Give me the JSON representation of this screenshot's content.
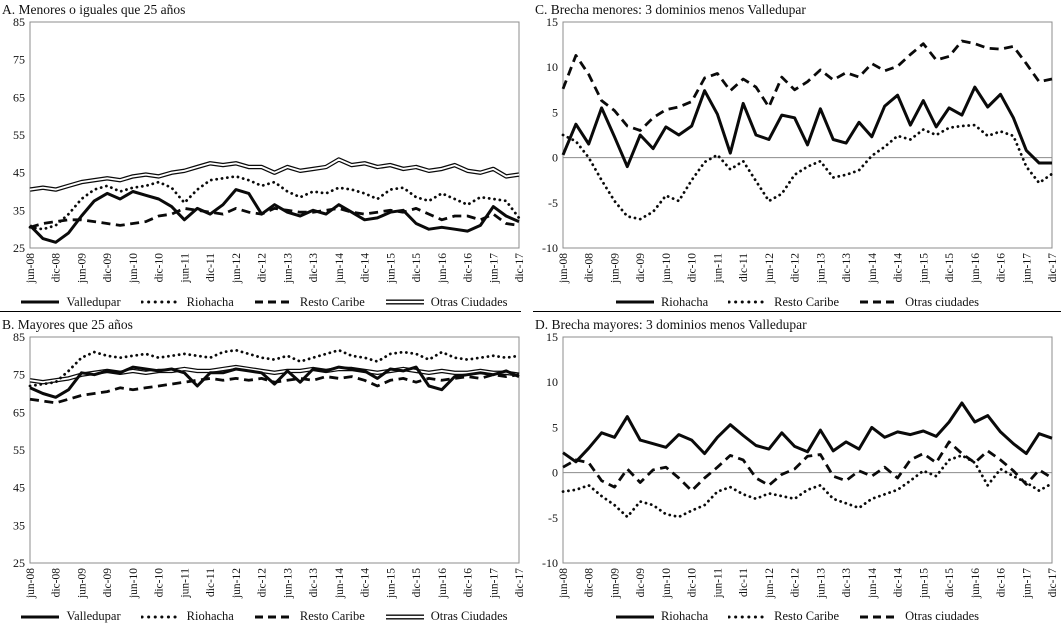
{
  "x_tick_labels": [
    "jun-08",
    "dic-08",
    "jun-09",
    "dic-09",
    "jun-10",
    "dic-10",
    "jun-11",
    "dic-11",
    "jun-12",
    "dic-12",
    "jun-13",
    "dic-13",
    "jun-14",
    "dic-14",
    "jun-15",
    "dic-15",
    "jun-16",
    "dic-16",
    "jun-17",
    "dic-17"
  ],
  "colors": {
    "line": "#0a0a0a",
    "axis": "#8c8c8c",
    "background": "#ffffff"
  },
  "chart_data": [
    {
      "panel_label": "A",
      "title": "A. Menores o iguales que 25 años",
      "type": "line",
      "x_frequency": "quarterly, jun-08 to dic-17",
      "y_ticks": [
        85,
        75,
        65,
        55,
        45,
        35,
        25
      ],
      "ylim": [
        25,
        85
      ],
      "zero_line": false,
      "series": [
        {
          "name": "Valledupar",
          "style": "solid",
          "values": [
            31,
            27.5,
            26.5,
            29,
            33.5,
            37.5,
            39.5,
            38,
            40,
            39,
            38,
            36,
            32.5,
            35.5,
            34,
            36.5,
            40.5,
            39.5,
            34,
            36.5,
            34.5,
            33.5,
            35,
            34,
            36.5,
            34.5,
            32.5,
            33,
            34.5,
            35,
            31.5,
            30,
            30.5,
            30,
            29.5,
            31,
            36,
            33.5,
            32
          ]
        },
        {
          "name": "Riohacha",
          "style": "dotted",
          "values": [
            30.5,
            30,
            31,
            34,
            38,
            40.5,
            41.5,
            40,
            41,
            41.5,
            42.5,
            41,
            37,
            40.5,
            43,
            43.5,
            44,
            43,
            41.5,
            42.5,
            40,
            38.5,
            40,
            39.5,
            41,
            40.5,
            39.5,
            38,
            40.5,
            41,
            38.5,
            37.5,
            39.5,
            38,
            36.5,
            38.5,
            38,
            37.5,
            33
          ]
        },
        {
          "name": "Resto Caribe",
          "style": "dashed",
          "values": [
            30.5,
            31.5,
            32,
            32.5,
            32.5,
            32,
            31.5,
            31,
            31.5,
            32,
            33.5,
            34,
            35.5,
            35,
            34.5,
            34,
            35.5,
            34.5,
            34,
            35.5,
            35,
            34.5,
            34.5,
            35,
            35.5,
            34.5,
            34,
            34.5,
            35,
            34.5,
            35.5,
            34,
            32.5,
            33.5,
            33.5,
            32.5,
            34,
            31.5,
            31
          ]
        },
        {
          "name": "Otras Ciudades",
          "style": "double",
          "values": [
            40.5,
            41,
            40.5,
            41.5,
            42.5,
            43,
            43.5,
            43,
            44,
            44.5,
            44,
            45,
            45.5,
            46.5,
            47.5,
            47,
            47.5,
            46.5,
            46.5,
            45,
            46.5,
            45.5,
            46,
            46.5,
            48.5,
            47,
            47.5,
            46.5,
            47,
            46,
            46.5,
            45.5,
            46,
            47,
            45.5,
            45,
            46,
            44,
            44.5
          ]
        }
      ]
    },
    {
      "panel_label": "C",
      "title": "C. Brecha menores: 3 dominios menos Valledupar",
      "type": "line",
      "x_frequency": "quarterly, jun-08 to dic-17",
      "y_ticks": [
        15,
        10,
        5,
        0,
        -5,
        -10
      ],
      "ylim": [
        -10,
        15
      ],
      "zero_line": true,
      "series": [
        {
          "name": "Riohacha",
          "style": "solid",
          "values": [
            0.3,
            3.7,
            1.5,
            5.5,
            2.3,
            -1,
            2.5,
            1,
            3.4,
            2.5,
            3.5,
            7.4,
            4.8,
            0.5,
            6,
            2.5,
            2,
            4.7,
            4.4,
            1.4,
            5.4,
            2,
            1.6,
            3.9,
            2.3,
            5.7,
            6.9,
            3.6,
            6.3,
            3.4,
            5.5,
            4.7,
            7.8,
            5.6,
            7,
            4.4,
            0.8,
            -0.6,
            -0.6
          ]
        },
        {
          "name": "Resto Caribe",
          "style": "dotted",
          "values": [
            2.5,
            1.8,
            0,
            -2.5,
            -4.8,
            -6.5,
            -6.8,
            -6,
            -4.2,
            -4.8,
            -2.5,
            -0.5,
            0.3,
            -1.3,
            -0.4,
            -2.6,
            -4.8,
            -4,
            -1.9,
            -1,
            -0.4,
            -2.2,
            -1.9,
            -1.4,
            0.2,
            1.2,
            2.4,
            2,
            3.1,
            2.5,
            3.3,
            3.5,
            3.6,
            2.4,
            2.9,
            2.4,
            -1,
            -2.8,
            -1.8
          ]
        },
        {
          "name": "Otras ciudades",
          "style": "dashed",
          "values": [
            7.6,
            11.3,
            9.2,
            6.3,
            5.2,
            3.5,
            3,
            4.4,
            5.3,
            5.6,
            6.2,
            8.8,
            9.3,
            7.4,
            8.7,
            7.8,
            5.6,
            8.9,
            7.5,
            8.4,
            9.7,
            8.6,
            9.4,
            8.9,
            10.4,
            9.6,
            10.1,
            11.4,
            12.6,
            10.8,
            11.2,
            12.9,
            12.6,
            12.1,
            12,
            12.3,
            10.4,
            8.4,
            8.7
          ]
        }
      ]
    },
    {
      "panel_label": "B",
      "title": "B. Mayores que 25 años",
      "type": "line",
      "x_frequency": "quarterly, jun-08 to dic-17",
      "y_ticks": [
        85,
        75,
        65,
        55,
        45,
        35,
        25
      ],
      "ylim": [
        25,
        85
      ],
      "zero_line": false,
      "series": [
        {
          "name": "Valledupar",
          "style": "solid",
          "values": [
            71.5,
            70,
            69,
            71,
            75.5,
            75,
            76,
            75.5,
            77,
            76.5,
            76,
            76.5,
            75.5,
            72,
            75.5,
            75.5,
            76.5,
            76,
            75.5,
            72.5,
            76,
            73,
            76.5,
            76,
            77,
            76.5,
            76,
            74,
            76.5,
            76,
            77,
            72,
            71,
            74.5,
            75,
            75.5,
            75,
            76,
            74.5
          ]
        },
        {
          "name": "Riohacha",
          "style": "dotted",
          "values": [
            72,
            72.5,
            73,
            76,
            79.5,
            81,
            80,
            79.5,
            80,
            80.5,
            79.5,
            80,
            80.5,
            80,
            79.5,
            81,
            81.5,
            80.5,
            79.5,
            79,
            80,
            78.5,
            79.5,
            80.5,
            81.5,
            80,
            79.5,
            78.5,
            80.5,
            81,
            80.5,
            79,
            81,
            79.5,
            79,
            79.5,
            80,
            79.5,
            80
          ]
        },
        {
          "name": "Resto Caribe",
          "style": "dashed",
          "values": [
            68.5,
            68,
            67.5,
            68.5,
            69.5,
            70,
            70.5,
            71.5,
            71,
            71.5,
            72,
            72.5,
            73,
            73.5,
            74,
            73.5,
            74,
            73.5,
            74,
            73,
            73.5,
            74,
            73.5,
            74.5,
            74,
            74.5,
            73.5,
            72,
            73.5,
            74,
            73,
            74,
            73.5,
            74,
            74.5,
            74,
            75,
            74.5,
            75
          ]
        },
        {
          "name": "Otras Ciudades",
          "style": "double",
          "values": [
            73.5,
            73,
            73.5,
            74,
            75,
            75.5,
            76,
            75.5,
            76,
            75.5,
            76,
            76,
            76.5,
            76,
            76,
            76.5,
            77,
            76.5,
            76,
            75.5,
            76,
            76,
            76.5,
            76,
            76.5,
            76.5,
            76,
            75.5,
            76,
            76.5,
            76,
            75.5,
            76,
            75.5,
            75.5,
            76,
            75.5,
            75.5,
            75
          ]
        }
      ]
    },
    {
      "panel_label": "D",
      "title": "D. Brecha mayores: 3 dominios menos Valledupar",
      "type": "line",
      "x_frequency": "quarterly, jun-08 to dic-17",
      "y_ticks": [
        15,
        10,
        5,
        0,
        -5,
        -10
      ],
      "ylim": [
        -10,
        15
      ],
      "zero_line": true,
      "series": [
        {
          "name": "Riohacha",
          "style": "solid",
          "values": [
            2.2,
            1.2,
            2.7,
            4.4,
            3.9,
            6.2,
            3.6,
            3.2,
            2.8,
            4.2,
            3.6,
            2.1,
            3.9,
            5.3,
            4.1,
            3,
            2.6,
            4.4,
            2.9,
            2.3,
            4.7,
            2.4,
            3.4,
            2.6,
            5,
            3.9,
            4.5,
            4.2,
            4.6,
            4,
            5.6,
            7.7,
            5.6,
            6.3,
            4.5,
            3.2,
            2.1,
            4.3,
            3.8
          ]
        },
        {
          "name": "Resto Caribe",
          "style": "dotted",
          "values": [
            -2.1,
            -1.9,
            -1.4,
            -2.6,
            -3.6,
            -4.9,
            -3.2,
            -3.6,
            -4.6,
            -4.9,
            -4.2,
            -3.6,
            -2.1,
            -1.6,
            -2.4,
            -2.9,
            -2.3,
            -2.6,
            -2.9,
            -1.9,
            -1.4,
            -2.9,
            -3.4,
            -3.9,
            -2.9,
            -2.4,
            -1.9,
            -0.9,
            0.2,
            -0.4,
            1.4,
            1.9,
            1.1,
            -1.4,
            0.4,
            -0.4,
            -1.1,
            -2,
            -1.2
          ]
        },
        {
          "name": "Otras ciudades",
          "style": "dashed",
          "values": [
            0.6,
            1.4,
            1.1,
            -0.9,
            -1.6,
            0.4,
            -1.1,
            0.3,
            0.6,
            -0.6,
            -2,
            -0.6,
            0.6,
            1.9,
            1.4,
            -0.6,
            -1.4,
            -0.2,
            0.4,
            1.8,
            2,
            -0.4,
            -0.9,
            0.2,
            -0.4,
            0.6,
            -0.6,
            1.4,
            2.1,
            1.1,
            3.4,
            2.1,
            1.1,
            2.4,
            1.4,
            0.2,
            -1.3,
            0.3,
            -0.6
          ]
        }
      ]
    }
  ]
}
